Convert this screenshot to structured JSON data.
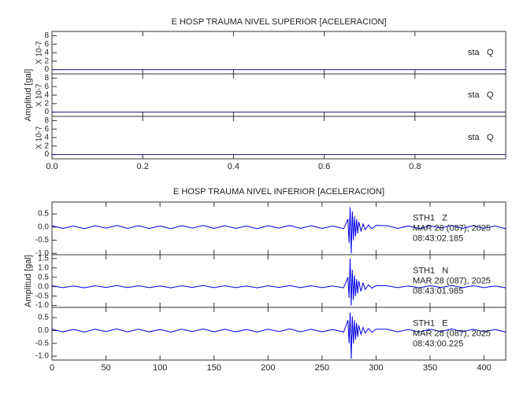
{
  "chart_data": [
    {
      "type": "line",
      "title": "E HOSP TRAUMA NIVEL SUPERIOR [ACELERACION]",
      "ylabel": "Amplitud [gal]",
      "xlim": [
        0,
        1
      ],
      "xticks": [
        {
          "value": 0,
          "label": "0.0"
        },
        {
          "value": 0.2,
          "label": "0.2"
        },
        {
          "value": 0.4,
          "label": "0.4"
        },
        {
          "value": 0.6,
          "label": "0.6"
        },
        {
          "value": 0.8,
          "label": "0.8"
        }
      ],
      "x": [
        0,
        1
      ],
      "panels": [
        {
          "labels": [
            "sta   Q"
          ],
          "scale": "X 10-7",
          "ylim": [
            -1,
            9
          ],
          "yticks": [
            0,
            2,
            4,
            6,
            8
          ],
          "series": [
            {
              "color": "#1a1a8c",
              "values": [
                0,
                0
              ]
            }
          ]
        },
        {
          "labels": [
            "sta   Q"
          ],
          "scale": "X 10-7",
          "ylim": [
            -1,
            9
          ],
          "yticks": [
            0,
            2,
            4,
            6,
            8
          ],
          "series": [
            {
              "color": "#1a1a8c",
              "values": [
                0,
                0
              ]
            }
          ]
        },
        {
          "labels": [
            "sta   Q"
          ],
          "scale": "X 10-7",
          "ylim": [
            -1,
            9
          ],
          "yticks": [
            0,
            2,
            4,
            6,
            8
          ],
          "series": [
            {
              "color": "#1a1a8c",
              "values": [
                0,
                0
              ]
            }
          ]
        }
      ]
    },
    {
      "type": "line",
      "title": "E HOSP TRAUMA NIVEL INFERIOR [ACELERACION]",
      "ylabel": "Amplitud [gal]",
      "xlim": [
        0,
        420
      ],
      "xticks": [
        0,
        50,
        100,
        150,
        200,
        250,
        300,
        350,
        400
      ],
      "x": [
        0,
        10,
        20,
        30,
        40,
        50,
        60,
        70,
        80,
        90,
        100,
        110,
        120,
        130,
        140,
        150,
        160,
        170,
        180,
        190,
        200,
        210,
        220,
        230,
        240,
        250,
        260,
        270,
        274,
        275,
        276,
        277,
        278,
        279,
        280,
        281,
        282,
        283,
        284,
        286,
        288,
        290,
        293,
        296,
        300,
        310,
        320,
        330,
        340,
        350,
        360,
        370,
        380,
        390,
        400,
        410,
        420
      ],
      "panels": [
        {
          "labels": [
            "STH1   Z",
            "MAR 28 (087), 2025",
            "08:43:02.185"
          ],
          "ylim": [
            -1.05,
            0.95
          ],
          "yticks": [
            {
              "value": 0.5,
              "label": "0.5"
            },
            {
              "value": 0,
              "label": "0.0"
            },
            {
              "value": -0.5,
              "label": "-0.5"
            },
            {
              "value": -1,
              "label": "-1.0"
            }
          ],
          "series": [
            {
              "color": "#0000e6",
              "values": [
                0.05,
                -0.05,
                0.04,
                -0.06,
                0.05,
                -0.04,
                0.06,
                -0.05,
                0.05,
                -0.05,
                0.04,
                -0.06,
                0.05,
                -0.04,
                0.06,
                -0.05,
                0.05,
                -0.05,
                0.04,
                -0.06,
                0.05,
                -0.04,
                0.06,
                -0.05,
                0.05,
                -0.05,
                0.04,
                -0.06,
                0.3,
                -0.6,
                0.75,
                -1.0,
                0.6,
                -0.5,
                0.4,
                -0.35,
                0.3,
                -0.25,
                0.2,
                -0.15,
                0.12,
                -0.1,
                0.08,
                -0.07,
                0.06,
                0.05,
                -0.05,
                0.04,
                -0.06,
                0.05,
                -0.04,
                0.06,
                -0.05,
                0.05,
                -0.05,
                0.04,
                -0.06
              ]
            }
          ]
        },
        {
          "labels": [
            "STH1   N",
            "MAR 28 (087), 2025",
            "08:43:01.985"
          ],
          "ylim": [
            -1.1,
            1.7
          ],
          "yticks": [
            {
              "value": 1.5,
              "label": "1.5"
            },
            {
              "value": 1,
              "label": "1.0"
            },
            {
              "value": 0.5,
              "label": "0.5"
            },
            {
              "value": 0,
              "label": "0.0"
            },
            {
              "value": -0.5,
              "label": "-0.5"
            },
            {
              "value": -1,
              "label": "-1.0"
            }
          ],
          "series": [
            {
              "color": "#0000e6",
              "values": [
                0.05,
                -0.05,
                0.04,
                -0.06,
                0.05,
                -0.04,
                0.06,
                -0.05,
                0.05,
                -0.05,
                0.04,
                -0.06,
                0.05,
                -0.04,
                0.06,
                -0.05,
                0.05,
                -0.05,
                0.04,
                -0.06,
                0.05,
                -0.04,
                0.06,
                -0.05,
                0.05,
                -0.05,
                0.04,
                -0.06,
                0.5,
                -0.6,
                1.5,
                -1.0,
                0.9,
                -0.7,
                0.6,
                -0.5,
                0.4,
                -0.35,
                0.3,
                -0.25,
                0.2,
                -0.15,
                0.1,
                -0.08,
                0.06,
                0.05,
                -0.05,
                0.04,
                -0.06,
                0.05,
                -0.04,
                0.06,
                -0.05,
                0.05,
                -0.05,
                0.04,
                -0.06
              ]
            }
          ]
        },
        {
          "labels": [
            "STH1   E",
            "MAR 28 (087), 2025",
            "08:43:00.225"
          ],
          "ylim": [
            -1.15,
            0.9
          ],
          "yticks": [
            {
              "value": 0.5,
              "label": "0.5"
            },
            {
              "value": 0,
              "label": "0.0"
            },
            {
              "value": -0.5,
              "label": "-0.5"
            },
            {
              "value": -1,
              "label": "-1.0"
            }
          ],
          "series": [
            {
              "color": "#0000e6",
              "values": [
                0.05,
                -0.05,
                0.04,
                -0.06,
                0.05,
                -0.04,
                0.06,
                -0.05,
                0.05,
                -0.05,
                0.04,
                -0.06,
                0.05,
                -0.04,
                0.06,
                -0.05,
                0.05,
                -0.05,
                0.04,
                -0.06,
                0.05,
                -0.04,
                0.06,
                -0.05,
                0.05,
                -0.05,
                0.04,
                -0.06,
                0.4,
                -0.5,
                0.7,
                -1.1,
                0.55,
                -0.5,
                0.4,
                -0.35,
                0.3,
                -0.25,
                0.2,
                -0.15,
                0.12,
                -0.1,
                0.08,
                -0.07,
                0.05,
                0.05,
                -0.05,
                0.04,
                -0.06,
                0.05,
                -0.04,
                0.06,
                -0.05,
                0.05,
                -0.05,
                0.04,
                -0.06
              ]
            }
          ]
        }
      ]
    }
  ]
}
